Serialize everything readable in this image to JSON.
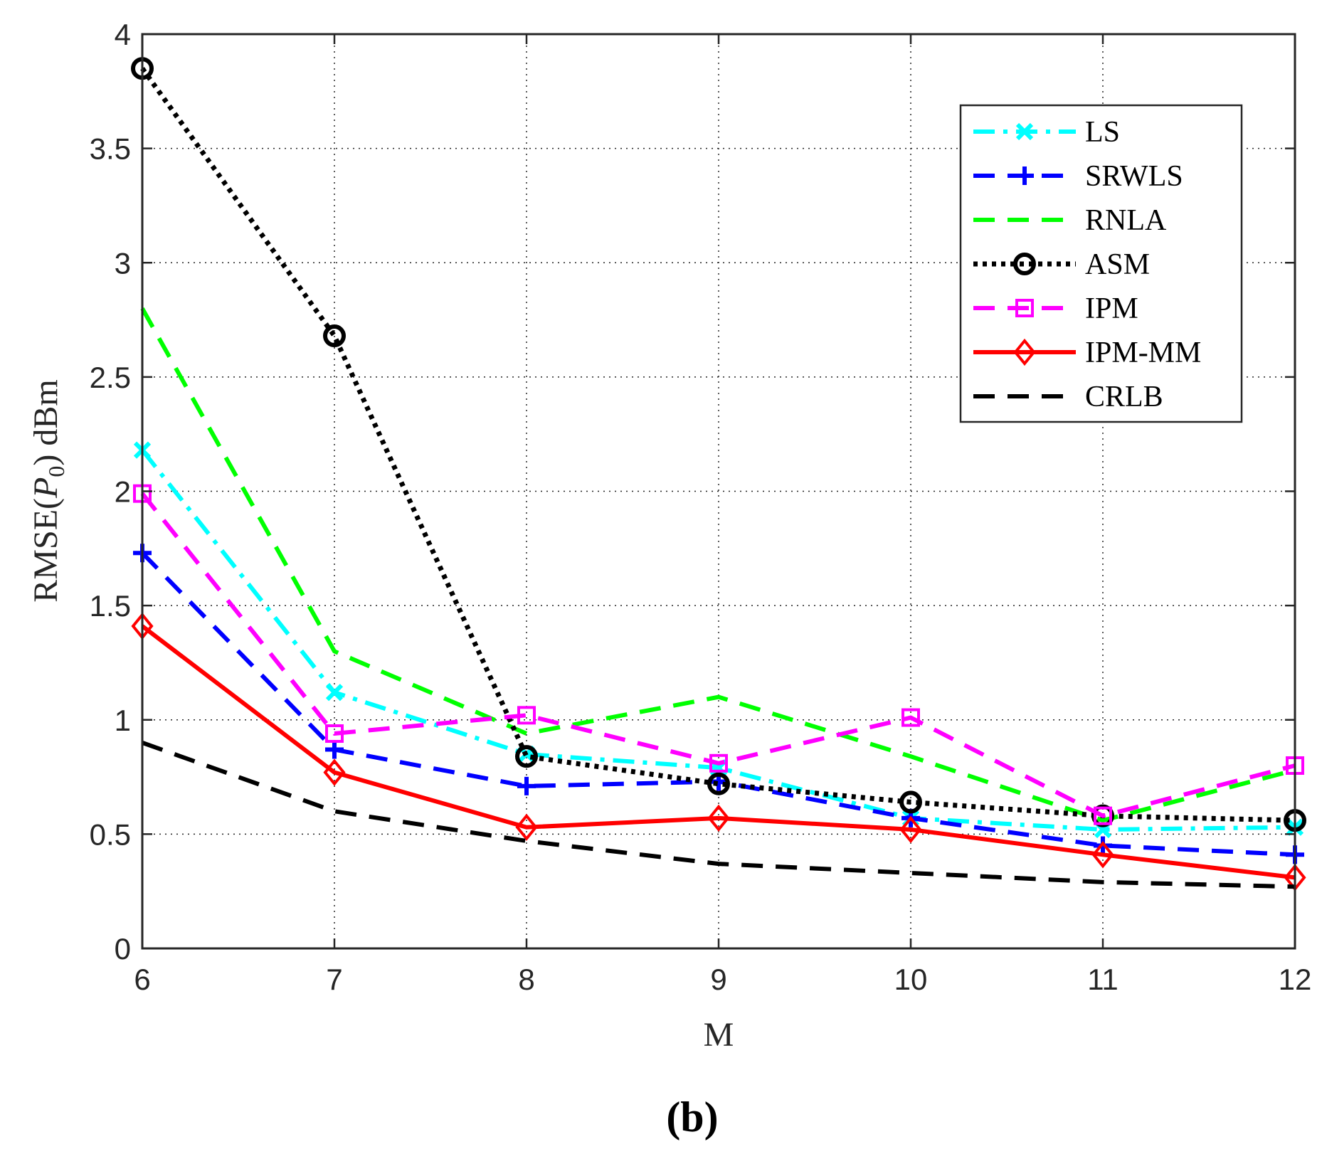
{
  "chart_data": {
    "type": "line",
    "caption": "(b)",
    "xlabel": "M",
    "ylabel": "RMSE(P0) dBm",
    "ylabel_parts": {
      "pre": "RMSE(",
      "var": "P",
      "sub": "0",
      "post": ") dBm"
    },
    "x": [
      6,
      7,
      8,
      9,
      10,
      11,
      12
    ],
    "xlim": [
      6,
      12
    ],
    "ylim": [
      0,
      4
    ],
    "xticks": [
      "6",
      "7",
      "8",
      "9",
      "10",
      "11",
      "12"
    ],
    "yticks": [
      "0",
      "0.5",
      "1",
      "1.5",
      "2",
      "2.5",
      "3",
      "3.5",
      "4"
    ],
    "grid": "dotted (partially occluded)",
    "legend_position": "top-right",
    "series": [
      {
        "name": "LS",
        "color": "#00ffff",
        "dash": "dashdot",
        "marker": "x",
        "values": [
          2.18,
          1.12,
          0.85,
          0.79,
          0.57,
          0.52,
          0.53
        ]
      },
      {
        "name": "SRWLS",
        "color": "#0000ff",
        "dash": "dashed",
        "marker": "plus",
        "values": [
          1.73,
          0.87,
          0.71,
          0.73,
          0.57,
          0.45,
          0.41
        ]
      },
      {
        "name": "RNLA",
        "color": "#00ff00",
        "dash": "dashed",
        "marker": "none",
        "values": [
          2.8,
          1.3,
          0.94,
          1.1,
          0.84,
          0.56,
          0.78
        ]
      },
      {
        "name": "ASM",
        "color": "#000000",
        "dash": "dotted",
        "marker": "circle",
        "values": [
          3.85,
          2.68,
          0.84,
          0.72,
          0.64,
          0.58,
          0.56
        ]
      },
      {
        "name": "IPM",
        "color": "#ff00ff",
        "dash": "dashed",
        "marker": "square",
        "values": [
          1.99,
          0.94,
          1.02,
          0.81,
          1.01,
          0.58,
          0.8
        ]
      },
      {
        "name": "IPM-MM",
        "color": "#ff0000",
        "dash": "solid",
        "marker": "diamond",
        "values": [
          1.41,
          0.77,
          0.53,
          0.57,
          0.52,
          0.41,
          0.31
        ]
      },
      {
        "name": "CRLB",
        "color": "#000000",
        "dash": "dashed",
        "marker": "none",
        "values": [
          0.9,
          0.6,
          0.47,
          0.37,
          0.33,
          0.29,
          0.27
        ]
      }
    ]
  }
}
